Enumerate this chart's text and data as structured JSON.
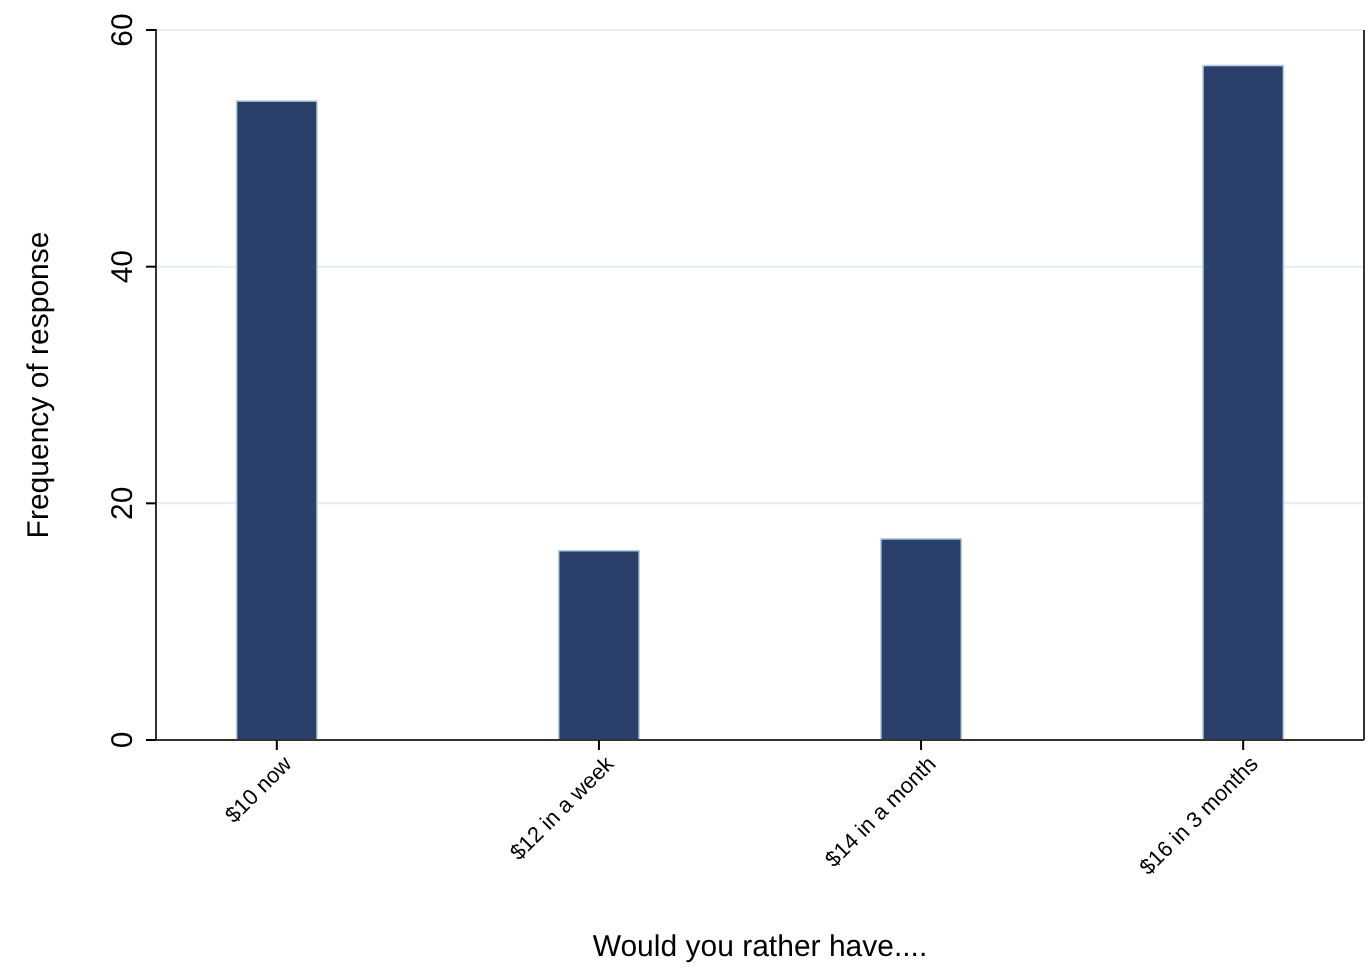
{
  "chart_data": {
    "type": "bar",
    "xlabel": "Would you rather have....",
    "ylabel": "Frequency of response",
    "categories": [
      "$10 now",
      "$12 in a week",
      "$14 in a month",
      "$16 in 3 months"
    ],
    "values": [
      54,
      16,
      17,
      57
    ],
    "color": "#2a406b",
    "ylim": [
      0,
      60
    ],
    "yticks": [
      0,
      20,
      40,
      60
    ],
    "grid": "y"
  }
}
